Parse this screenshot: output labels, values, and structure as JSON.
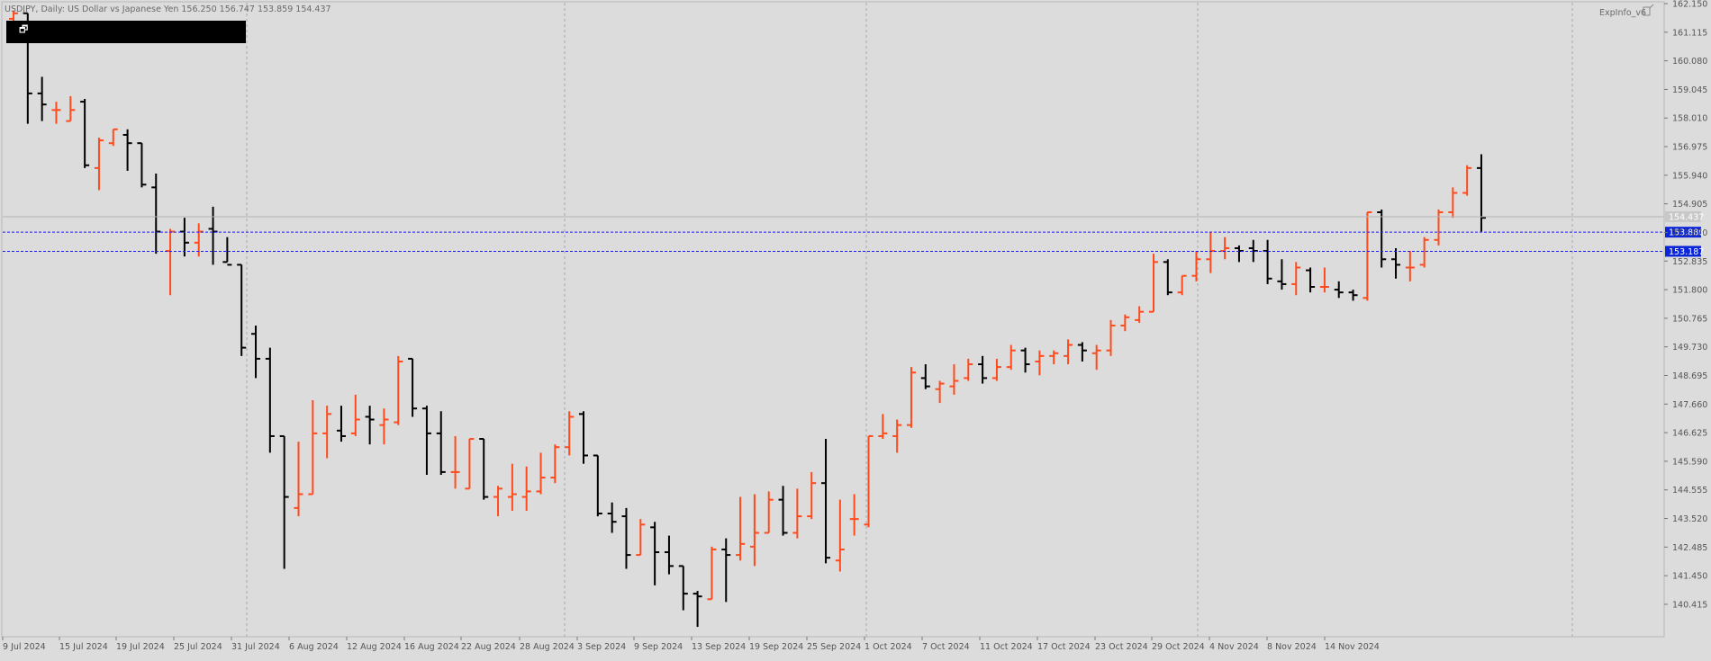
{
  "header": {
    "symbol_text": "USDJPY, Daily:  US Dollar vs Japanese Yen  156.250 156.747 153.859 154.437",
    "indicator_label": "ExpInfo_v6"
  },
  "colors": {
    "background": "#dcdcdc",
    "bull": "#ff4a1c",
    "bear": "#000000",
    "grid": "#a8a8a8",
    "level_line": "#1a1aff",
    "level_tag": "#0b25d8",
    "price_tag": "#c8c8c8",
    "axis_text": "#555555"
  },
  "chart_data": {
    "type": "ohlc-bar",
    "title": "USDJPY, Daily:  US Dollar vs Japanese Yen",
    "ylim": [
      139.6,
      162.15
    ],
    "y_ticks": [
      "162.150",
      "161.115",
      "160.080",
      "159.045",
      "158.010",
      "156.975",
      "155.940",
      "154.905",
      "153.870",
      "152.835",
      "151.800",
      "150.765",
      "149.730",
      "148.695",
      "147.660",
      "146.625",
      "145.590",
      "144.555",
      "143.520",
      "142.485",
      "141.450",
      "140.415"
    ],
    "x_labels": [
      "9 Jul 2024",
      "15 Jul 2024",
      "19 Jul 2024",
      "25 Jul 2024",
      "31 Jul 2024",
      "6 Aug 2024",
      "12 Aug 2024",
      "16 Aug 2024",
      "22 Aug 2024",
      "28 Aug 2024",
      "3 Sep 2024",
      "9 Sep 2024",
      "13 Sep 2024",
      "19 Sep 2024",
      "25 Sep 2024",
      "1 Oct 2024",
      "7 Oct 2024",
      "11 Oct 2024",
      "17 Oct 2024",
      "23 Oct 2024",
      "29 Oct 2024",
      "4 Nov 2024",
      "8 Nov 2024",
      "14 Nov 2024"
    ],
    "month_separators": [
      "1 Jul 2024",
      "1 Aug 2024",
      "1 Sep 2024",
      "1 Oct 2024",
      "1 Nov 2024",
      "1 Dec 2024"
    ],
    "current_price": 154.437,
    "current_price_label": "154.437",
    "levels": [
      {
        "value": 153.88,
        "label": "153.880"
      },
      {
        "value": 153.187,
        "label": "153.187"
      }
    ],
    "ohlc": [
      [
        161.6,
        161.9,
        161.0,
        161.8
      ],
      [
        161.8,
        161.8,
        157.8,
        158.9
      ],
      [
        158.9,
        159.5,
        157.9,
        158.5
      ],
      [
        158.3,
        158.6,
        157.8,
        158.3
      ],
      [
        157.9,
        158.8,
        157.9,
        158.3
      ],
      [
        158.6,
        158.7,
        156.2,
        156.3
      ],
      [
        156.2,
        157.3,
        155.4,
        157.2
      ],
      [
        157.1,
        157.6,
        157.0,
        157.6
      ],
      [
        157.4,
        157.6,
        156.1,
        157.1
      ],
      [
        157.1,
        157.1,
        155.5,
        155.6
      ],
      [
        155.5,
        156.0,
        153.1,
        153.9
      ],
      [
        153.2,
        154.0,
        151.6,
        153.9
      ],
      [
        153.9,
        154.4,
        153.0,
        153.5
      ],
      [
        153.5,
        154.2,
        153.0,
        153.9
      ],
      [
        154.0,
        154.8,
        152.7,
        153.9
      ],
      [
        152.8,
        153.7,
        152.8,
        152.7
      ],
      [
        152.7,
        152.7,
        149.4,
        149.7
      ],
      [
        150.2,
        150.5,
        148.6,
        149.3
      ],
      [
        149.3,
        149.7,
        145.9,
        146.5
      ],
      [
        146.5,
        146.5,
        141.7,
        144.3
      ],
      [
        143.9,
        146.3,
        143.6,
        144.4
      ],
      [
        144.4,
        147.8,
        144.4,
        146.6
      ],
      [
        146.6,
        147.6,
        145.7,
        147.3
      ],
      [
        146.7,
        147.6,
        146.3,
        146.5
      ],
      [
        146.6,
        148.0,
        146.5,
        147.1
      ],
      [
        147.2,
        147.6,
        146.2,
        147.1
      ],
      [
        146.9,
        147.5,
        146.2,
        147.1
      ],
      [
        147.0,
        149.4,
        146.9,
        149.2
      ],
      [
        149.3,
        149.3,
        147.2,
        147.5
      ],
      [
        147.5,
        147.6,
        145.1,
        146.6
      ],
      [
        146.6,
        147.4,
        145.1,
        145.2
      ],
      [
        145.2,
        146.5,
        144.6,
        145.2
      ],
      [
        144.6,
        146.4,
        144.6,
        146.4
      ],
      [
        146.4,
        146.4,
        144.2,
        144.3
      ],
      [
        144.3,
        144.7,
        143.6,
        144.6
      ],
      [
        144.3,
        145.5,
        143.8,
        144.4
      ],
      [
        144.3,
        145.4,
        143.8,
        144.5
      ],
      [
        144.5,
        145.9,
        144.4,
        145.0
      ],
      [
        145.0,
        146.2,
        144.8,
        146.1
      ],
      [
        146.1,
        147.4,
        145.8,
        147.2
      ],
      [
        147.3,
        147.4,
        145.5,
        145.8
      ],
      [
        145.8,
        145.8,
        143.6,
        143.7
      ],
      [
        143.7,
        144.1,
        143.0,
        143.4
      ],
      [
        143.6,
        143.9,
        141.7,
        142.2
      ],
      [
        142.2,
        143.5,
        142.2,
        143.3
      ],
      [
        143.2,
        143.4,
        141.1,
        142.3
      ],
      [
        142.3,
        142.9,
        141.5,
        141.8
      ],
      [
        141.8,
        141.8,
        140.2,
        140.8
      ],
      [
        140.8,
        140.9,
        139.6,
        140.7
      ],
      [
        140.6,
        142.5,
        140.6,
        142.4
      ],
      [
        142.4,
        142.8,
        140.5,
        142.2
      ],
      [
        142.2,
        144.3,
        142.0,
        142.6
      ],
      [
        142.5,
        144.4,
        141.8,
        143.0
      ],
      [
        143.0,
        144.5,
        143.0,
        144.2
      ],
      [
        144.2,
        144.7,
        142.9,
        143.0
      ],
      [
        143.0,
        144.6,
        142.8,
        143.6
      ],
      [
        143.6,
        145.2,
        143.5,
        144.8
      ],
      [
        144.8,
        146.4,
        141.9,
        142.1
      ],
      [
        142.0,
        144.2,
        141.6,
        142.4
      ],
      [
        143.5,
        144.4,
        142.9,
        143.5
      ],
      [
        143.3,
        146.5,
        143.2,
        146.5
      ],
      [
        146.5,
        147.3,
        146.4,
        146.6
      ],
      [
        146.5,
        147.1,
        145.9,
        146.9
      ],
      [
        146.9,
        149.0,
        146.8,
        148.8
      ],
      [
        148.6,
        149.1,
        148.2,
        148.3
      ],
      [
        148.2,
        148.5,
        147.7,
        148.4
      ],
      [
        148.3,
        149.1,
        148.0,
        148.5
      ],
      [
        148.6,
        149.3,
        148.5,
        149.1
      ],
      [
        149.1,
        149.4,
        148.4,
        148.6
      ],
      [
        148.6,
        149.3,
        148.5,
        149.0
      ],
      [
        149.0,
        149.8,
        148.9,
        149.6
      ],
      [
        149.6,
        149.7,
        148.8,
        149.1
      ],
      [
        149.2,
        149.6,
        148.7,
        149.4
      ],
      [
        149.4,
        149.6,
        149.1,
        149.5
      ],
      [
        149.4,
        150.0,
        149.1,
        149.8
      ],
      [
        149.8,
        149.9,
        149.2,
        149.6
      ],
      [
        149.5,
        149.8,
        148.9,
        149.6
      ],
      [
        149.6,
        150.7,
        149.4,
        150.5
      ],
      [
        150.5,
        150.9,
        150.3,
        150.8
      ],
      [
        150.7,
        151.2,
        150.6,
        151.0
      ],
      [
        151.0,
        153.1,
        151.0,
        152.8
      ],
      [
        152.8,
        152.9,
        151.6,
        151.7
      ],
      [
        151.7,
        152.3,
        151.6,
        152.3
      ],
      [
        152.3,
        153.2,
        152.1,
        152.9
      ],
      [
        152.9,
        153.9,
        152.4,
        153.2
      ],
      [
        153.2,
        153.7,
        152.9,
        153.3
      ],
      [
        153.3,
        153.4,
        152.8,
        153.2
      ],
      [
        153.3,
        153.6,
        152.8,
        153.2
      ],
      [
        153.2,
        153.6,
        152.0,
        152.2
      ],
      [
        152.1,
        152.9,
        151.8,
        152.0
      ],
      [
        152.0,
        152.8,
        151.6,
        152.6
      ],
      [
        152.5,
        152.6,
        151.7,
        151.9
      ],
      [
        151.9,
        152.6,
        151.7,
        151.9
      ],
      [
        151.8,
        152.1,
        151.5,
        151.7
      ],
      [
        151.7,
        151.8,
        151.4,
        151.6
      ],
      [
        151.5,
        154.6,
        151.4,
        154.6
      ],
      [
        154.6,
        154.7,
        152.6,
        152.9
      ],
      [
        152.9,
        153.3,
        152.2,
        152.7
      ],
      [
        152.6,
        153.2,
        152.1,
        152.6
      ],
      [
        152.7,
        153.7,
        152.6,
        153.6
      ],
      [
        153.6,
        154.7,
        153.4,
        154.6
      ],
      [
        154.6,
        155.5,
        154.4,
        155.3
      ],
      [
        155.3,
        156.3,
        155.2,
        156.2
      ],
      [
        156.2,
        156.7,
        153.9,
        154.4
      ]
    ]
  }
}
